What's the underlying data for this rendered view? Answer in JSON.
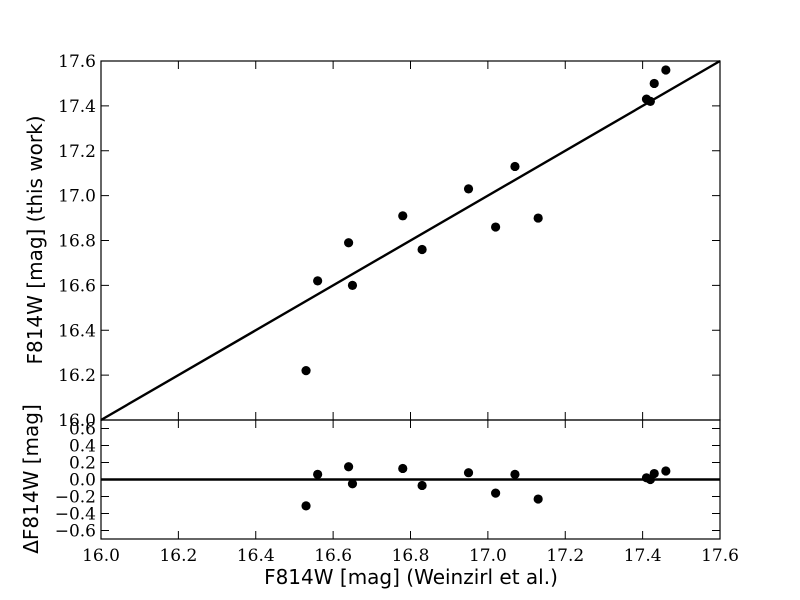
{
  "chart_data": [
    {
      "type": "scatter",
      "panel": "main",
      "xlabel": "",
      "ylabel": "F814W [mag] (this work)",
      "xlim": [
        16.0,
        17.6
      ],
      "ylim": [
        16.0,
        17.6
      ],
      "yticks": [
        "16.0",
        "16.2",
        "16.4",
        "16.6",
        "16.8",
        "17.0",
        "17.2",
        "17.4",
        "17.6"
      ],
      "reference_line": "one-to-one",
      "points": [
        {
          "x": 16.53,
          "y": 16.22
        },
        {
          "x": 16.56,
          "y": 16.62
        },
        {
          "x": 16.64,
          "y": 16.79
        },
        {
          "x": 16.65,
          "y": 16.6
        },
        {
          "x": 16.78,
          "y": 16.91
        },
        {
          "x": 16.83,
          "y": 16.76
        },
        {
          "x": 16.95,
          "y": 17.03
        },
        {
          "x": 17.02,
          "y": 16.86
        },
        {
          "x": 17.07,
          "y": 17.13
        },
        {
          "x": 17.13,
          "y": 16.9
        },
        {
          "x": 17.41,
          "y": 17.43
        },
        {
          "x": 17.42,
          "y": 17.42
        },
        {
          "x": 17.43,
          "y": 17.5
        },
        {
          "x": 17.46,
          "y": 17.56
        }
      ]
    },
    {
      "type": "scatter",
      "panel": "residual",
      "xlabel": "F814W [mag] (Weinzirl et al.)",
      "ylabel": "ΔF814W [mag]",
      "xlim": [
        16.0,
        17.6
      ],
      "ylim": [
        -0.7,
        0.7
      ],
      "xticks": [
        "16.0",
        "16.2",
        "16.4",
        "16.6",
        "16.8",
        "17.0",
        "17.2",
        "17.4",
        "17.6"
      ],
      "yticks": [
        "−0.6",
        "−0.4",
        "−0.2",
        "0.0",
        "0.2",
        "0.4",
        "0.6"
      ],
      "reference_line": "zero",
      "points": [
        {
          "x": 16.53,
          "y": -0.31
        },
        {
          "x": 16.56,
          "y": 0.06
        },
        {
          "x": 16.64,
          "y": 0.15
        },
        {
          "x": 16.65,
          "y": -0.05
        },
        {
          "x": 16.78,
          "y": 0.13
        },
        {
          "x": 16.83,
          "y": -0.07
        },
        {
          "x": 16.95,
          "y": 0.08
        },
        {
          "x": 17.02,
          "y": -0.16
        },
        {
          "x": 17.07,
          "y": 0.06
        },
        {
          "x": 17.13,
          "y": -0.23
        },
        {
          "x": 17.41,
          "y": 0.02
        },
        {
          "x": 17.42,
          "y": 0.0
        },
        {
          "x": 17.43,
          "y": 0.07
        },
        {
          "x": 17.46,
          "y": 0.1
        }
      ]
    }
  ]
}
